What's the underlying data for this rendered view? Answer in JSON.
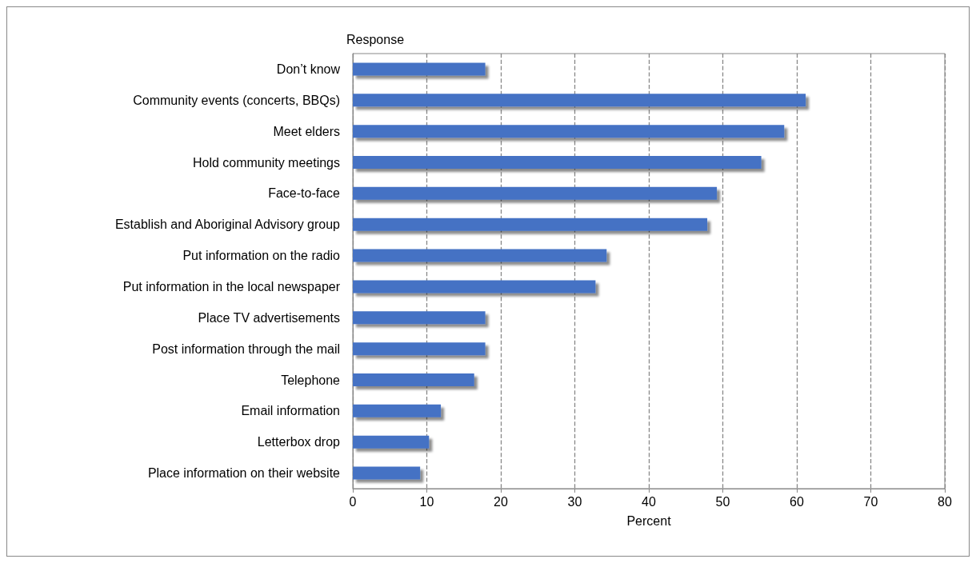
{
  "chart_data": {
    "type": "bar",
    "orientation": "horizontal",
    "ylabel": "Response",
    "xlabel": "Percent",
    "categories": [
      "Don’t know",
      "Community events (concerts, BBQs)",
      "Meet elders",
      "Hold community meetings",
      "Face-to-face",
      "Establish and Aboriginal Advisory group",
      "Put information on the radio",
      "Put information in the local newspaper",
      "Place TV advertisements",
      "Post information through the mail",
      "Telephone",
      "Email information",
      "Letterbox drop",
      "Place information on their website"
    ],
    "values": [
      17.9,
      61.2,
      58.3,
      55.2,
      49.2,
      47.9,
      34.3,
      32.8,
      17.9,
      17.9,
      16.4,
      11.9,
      10.3,
      9.1
    ],
    "color": "#4472c4",
    "xlim": [
      0,
      80
    ],
    "xticks": [
      0,
      10,
      20,
      30,
      40,
      50,
      60,
      70,
      80
    ],
    "grid": "x"
  }
}
